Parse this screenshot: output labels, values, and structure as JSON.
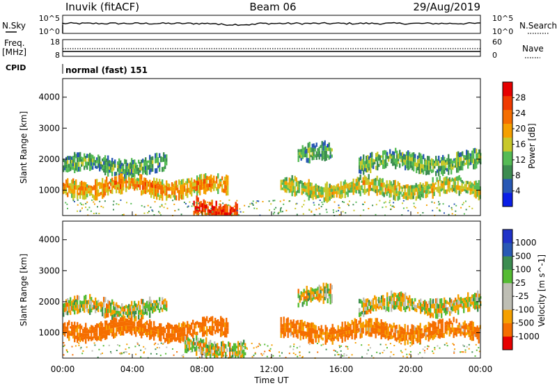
{
  "header": {
    "station": "Inuvik (fitACF)",
    "beam": "Beam 06",
    "date": "29/Aug/2019"
  },
  "status_panels": {
    "nsky_label": "N.Sky",
    "nsky_ticks": [
      "10^5",
      "10^0"
    ],
    "nsearch_label": "N.Search",
    "nsearch_ticks": [
      "10^5",
      "10^0"
    ],
    "freq_label_1": "Freq.",
    "freq_label_2": "[MHz]",
    "freq_ticks": [
      "18",
      "8"
    ],
    "nave_label": "Nave",
    "nave_ticks": [
      "60",
      "0"
    ],
    "cpid_label": "CPID",
    "cpid_value": "normal (fast) 151"
  },
  "colors": {
    "power_scale": [
      "#0a1ee6",
      "#2858b4",
      "#3c8c50",
      "#55bb55",
      "#c8c82a",
      "#f5a000",
      "#f56e00",
      "#f03a00",
      "#e60000"
    ],
    "velocity_scale": [
      "#e60000",
      "#f56e00",
      "#f5a000",
      "#bebeb4",
      "#bebeb4",
      "#55bb33",
      "#3c8c50",
      "#2858b4",
      "#2032c8"
    ]
  },
  "chart_data": [
    {
      "type": "heatmap",
      "parameter": "power",
      "ylabel": "Slant Range [km]",
      "ylim": [
        180,
        4600
      ],
      "yticks": [
        "1000",
        "2000",
        "3000",
        "4000"
      ],
      "xlim": [
        "00:00",
        "24:00"
      ],
      "colorbar_label": "Power [dB]",
      "colorbar_ticks": [
        "4",
        "8",
        "12",
        "16",
        "20",
        "24",
        "28"
      ],
      "colorbar_range": [
        0,
        32
      ],
      "echo_bands": [
        {
          "range_km": 1800,
          "start_h": 0.0,
          "end_h": 6.0,
          "power_db": 13
        },
        {
          "range_km": 2150,
          "start_h": 13.5,
          "end_h": 15.5,
          "power_db": 12
        },
        {
          "range_km": 1900,
          "start_h": 17.0,
          "end_h": 24.0,
          "power_db": 14
        },
        {
          "range_km": 1100,
          "start_h": 0.0,
          "end_h": 9.5,
          "power_db": 22
        },
        {
          "range_km": 1050,
          "start_h": 12.5,
          "end_h": 24.0,
          "power_db": 18
        },
        {
          "range_km": 400,
          "start_h": 7.5,
          "end_h": 10.0,
          "power_db": 30
        }
      ]
    },
    {
      "type": "heatmap",
      "parameter": "velocity",
      "ylabel": "Slant Range [km]",
      "ylim": [
        180,
        4600
      ],
      "yticks": [
        "1000",
        "2000",
        "3000",
        "4000"
      ],
      "xlabel": "Time UT",
      "xticks": [
        "00:00",
        "04:00",
        "08:00",
        "12:00",
        "16:00",
        "20:00",
        "00:00"
      ],
      "xlim": [
        "00:00",
        "24:00"
      ],
      "colorbar_label": "Velocity [m s^-1]",
      "colorbar_ticks": [
        "1000",
        "500",
        "100",
        "25",
        "-25",
        "-100",
        "-500",
        "-1000"
      ],
      "echo_bands": [
        {
          "range_km": 1800,
          "start_h": 0.0,
          "end_h": 6.0,
          "velocity": 0
        },
        {
          "range_km": 2150,
          "start_h": 13.5,
          "end_h": 15.5,
          "velocity": 0
        },
        {
          "range_km": 1900,
          "start_h": 17.0,
          "end_h": 24.0,
          "velocity": 0
        },
        {
          "range_km": 1100,
          "start_h": 0.0,
          "end_h": 9.5,
          "velocity": -200
        },
        {
          "range_km": 1050,
          "start_h": 12.5,
          "end_h": 24.0,
          "velocity": -150
        },
        {
          "range_km": 500,
          "start_h": 7.0,
          "end_h": 10.5,
          "velocity": 0
        }
      ]
    }
  ]
}
